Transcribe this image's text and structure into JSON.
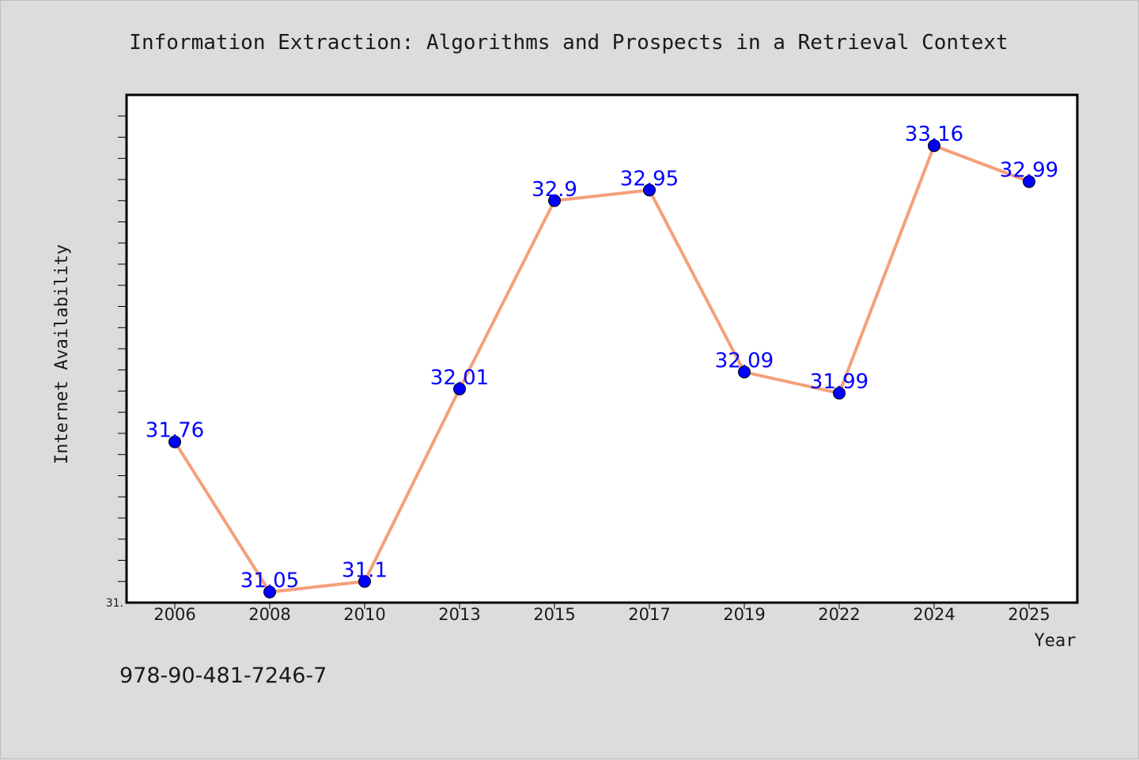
{
  "footer": {
    "isbn": "978-90-481-7246-7"
  },
  "chart_data": {
    "type": "line",
    "title": "Information Extraction: Algorithms and Prospects in a Retrieval Context",
    "xlabel": "Year",
    "ylabel": "Internet Availability",
    "categories": [
      "2006",
      "2008",
      "2010",
      "2013",
      "2015",
      "2017",
      "2019",
      "2022",
      "2024",
      "2025"
    ],
    "series": [
      {
        "values": [
          31.76,
          31.05,
          31.1,
          32.01,
          32.9,
          32.95,
          32.09,
          31.99,
          33.16,
          32.99
        ],
        "line_color": "#f4a07a",
        "marker_color": "#0000ff"
      }
    ],
    "data_labels": [
      "31.76",
      "31.05",
      "31.1",
      "32.01",
      "32.9",
      "32.95",
      "32.09",
      "31.99",
      "33.16",
      "32.99"
    ],
    "yticks": [
      31
    ],
    "ytick_labels": [
      "31."
    ],
    "ylim": [
      31.0,
      33.4
    ],
    "grid": false,
    "legend": "none",
    "colors": {
      "background": "#dcdcdc",
      "plot_background": "#ffffff",
      "line": "#f4a07a",
      "marker": "#0000ff",
      "data_label": "#0000ff"
    }
  }
}
